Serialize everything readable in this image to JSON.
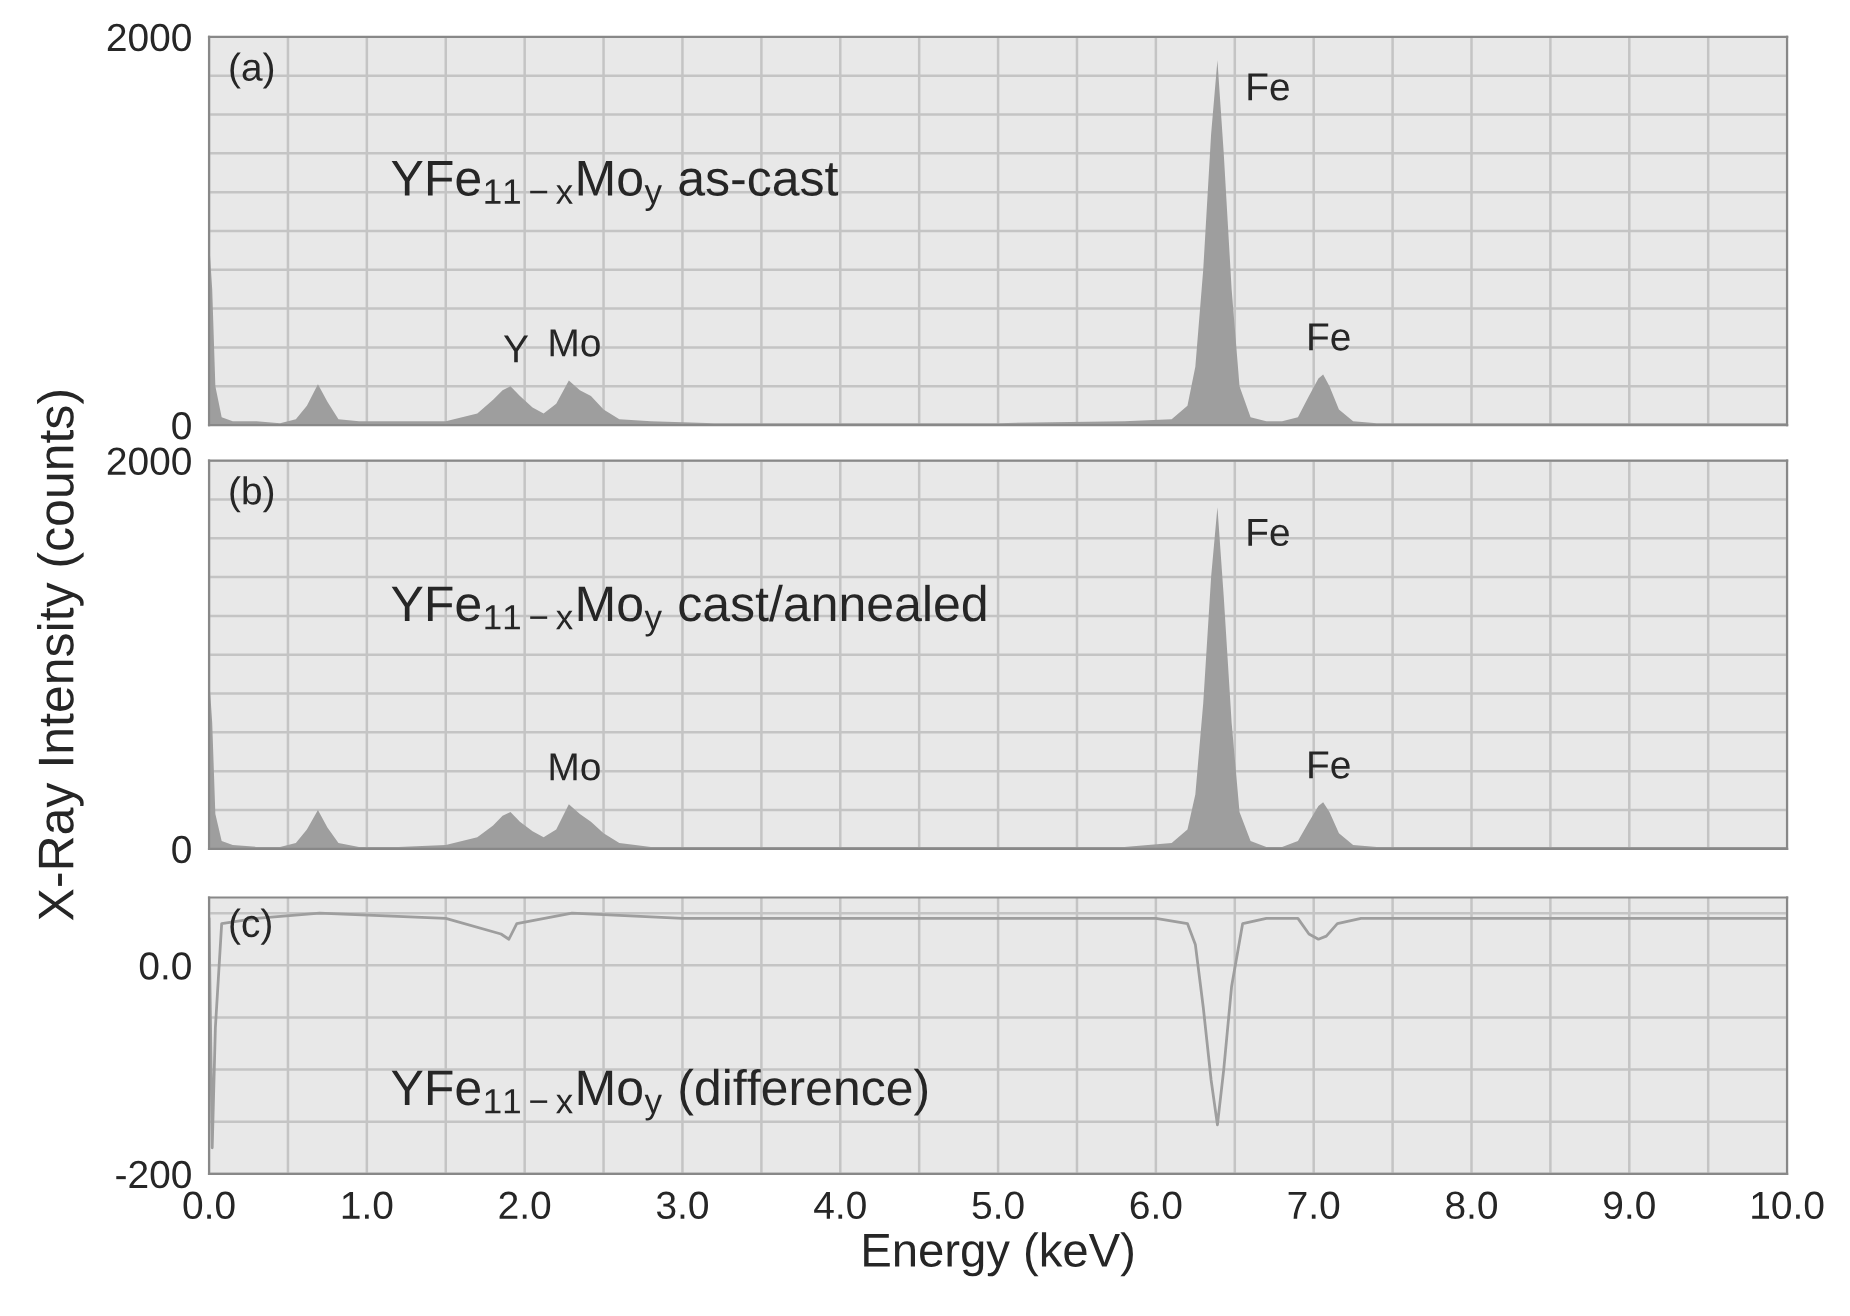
{
  "chart_data": [
    {
      "type": "area",
      "x": [
        0,
        0.02,
        0.04,
        0.08,
        0.15,
        0.3,
        0.45,
        0.55,
        0.62,
        0.69,
        0.75,
        0.82,
        0.95,
        1.2,
        1.5,
        1.7,
        1.8,
        1.86,
        1.91,
        1.97,
        2.05,
        2.12,
        2.2,
        2.28,
        2.35,
        2.42,
        2.5,
        2.6,
        2.8,
        3.2,
        4,
        5,
        5.8,
        6.1,
        6.2,
        6.25,
        6.3,
        6.35,
        6.39,
        6.43,
        6.48,
        6.53,
        6.6,
        6.7,
        6.8,
        6.9,
        6.97,
        7.03,
        7.06,
        7.1,
        7.16,
        7.25,
        7.4,
        8,
        9,
        10
      ],
      "series": [
        {
          "color": "#9e9e9e",
          "values": [
            950,
            700,
            200,
            40,
            20,
            20,
            10,
            30,
            100,
            210,
            120,
            30,
            20,
            20,
            20,
            60,
            130,
            180,
            200,
            150,
            90,
            60,
            110,
            230,
            180,
            150,
            80,
            30,
            20,
            10,
            10,
            10,
            20,
            30,
            100,
            300,
            800,
            1500,
            1880,
            1400,
            700,
            200,
            40,
            20,
            20,
            40,
            150,
            240,
            260,
            200,
            80,
            20,
            10,
            10,
            10,
            10
          ]
        }
      ],
      "xlim": [
        0,
        10
      ],
      "xticks": [
        {
          "value": 0,
          "label": null
        },
        {
          "value": 0.5,
          "label": null
        },
        {
          "value": 1,
          "label": null
        },
        {
          "value": 1.5,
          "label": null
        },
        {
          "value": 2,
          "label": null
        },
        {
          "value": 2.5,
          "label": null
        },
        {
          "value": 3,
          "label": null
        },
        {
          "value": 3.5,
          "label": null
        },
        {
          "value": 4,
          "label": null
        },
        {
          "value": 4.5,
          "label": null
        },
        {
          "value": 5,
          "label": null
        },
        {
          "value": 5.5,
          "label": null
        },
        {
          "value": 6,
          "label": null
        },
        {
          "value": 6.5,
          "label": null
        },
        {
          "value": 7,
          "label": null
        },
        {
          "value": 7.5,
          "label": null
        },
        {
          "value": 8,
          "label": null
        },
        {
          "value": 8.5,
          "label": null
        },
        {
          "value": 9,
          "label": null
        },
        {
          "value": 9.5,
          "label": null
        },
        {
          "value": 10,
          "label": null
        }
      ],
      "ylim": [
        0,
        2000
      ],
      "yticks": [
        0,
        {
          "value": 200,
          "label": null
        },
        {
          "value": 400,
          "label": null
        },
        {
          "value": 600,
          "label": null
        },
        {
          "value": 800,
          "label": null
        },
        {
          "value": 1000,
          "label": null
        },
        {
          "value": 1200,
          "label": null
        },
        {
          "value": 1400,
          "label": null
        },
        {
          "value": 1600,
          "label": null
        },
        {
          "value": 1800,
          "label": null
        },
        2000
      ],
      "tick_labels": "y",
      "grid": true,
      "annotations": [
        "(a)",
        "YFe$_{11−x}$Mo$_{y}$ as-cast",
        {
          "text": "Y",
          "x": 1.91,
          "y": 196
        },
        {
          "text": "Mo",
          "x": 2.28,
          "y": 227
        },
        {
          "text": "Fe",
          "x": 6.39,
          "y": 1876
        },
        {
          "text": "Fe",
          "x": 7.06,
          "y": 258
        }
      ]
    },
    {
      "type": "area",
      "x": [
        0,
        0.02,
        0.04,
        0.08,
        0.15,
        0.3,
        0.45,
        0.55,
        0.62,
        0.69,
        0.75,
        0.82,
        0.95,
        1.2,
        1.5,
        1.7,
        1.8,
        1.86,
        1.91,
        1.97,
        2.05,
        2.12,
        2.2,
        2.28,
        2.35,
        2.42,
        2.5,
        2.6,
        2.8,
        3.2,
        4,
        5,
        5.8,
        6.1,
        6.2,
        6.25,
        6.3,
        6.35,
        6.39,
        6.43,
        6.48,
        6.53,
        6.6,
        6.7,
        6.8,
        6.9,
        6.97,
        7.03,
        7.06,
        7.1,
        7.16,
        7.25,
        7.4,
        8,
        9,
        10
      ],
      "series": [
        {
          "color": "#9e9e9e",
          "values": [
            890,
            650,
            180,
            40,
            20,
            10,
            10,
            30,
            100,
            200,
            110,
            30,
            10,
            10,
            20,
            60,
            120,
            170,
            190,
            140,
            90,
            60,
            100,
            230,
            180,
            140,
            80,
            30,
            10,
            10,
            10,
            10,
            10,
            30,
            100,
            280,
            750,
            1400,
            1760,
            1300,
            650,
            190,
            40,
            10,
            10,
            40,
            140,
            220,
            240,
            190,
            80,
            20,
            10,
            10,
            10,
            10
          ]
        }
      ],
      "xlim": [
        0,
        10
      ],
      "xticks": [
        {
          "value": 0,
          "label": null
        },
        {
          "value": 0.5,
          "label": null
        },
        {
          "value": 1,
          "label": null
        },
        {
          "value": 1.5,
          "label": null
        },
        {
          "value": 2,
          "label": null
        },
        {
          "value": 2.5,
          "label": null
        },
        {
          "value": 3,
          "label": null
        },
        {
          "value": 3.5,
          "label": null
        },
        {
          "value": 4,
          "label": null
        },
        {
          "value": 4.5,
          "label": null
        },
        {
          "value": 5,
          "label": null
        },
        {
          "value": 5.5,
          "label": null
        },
        {
          "value": 6,
          "label": null
        },
        {
          "value": 6.5,
          "label": null
        },
        {
          "value": 7,
          "label": null
        },
        {
          "value": 7.5,
          "label": null
        },
        {
          "value": 8,
          "label": null
        },
        {
          "value": 8.5,
          "label": null
        },
        {
          "value": 9,
          "label": null
        },
        {
          "value": 9.5,
          "label": null
        },
        {
          "value": 10,
          "label": null
        }
      ],
      "ylim": [
        0,
        2000
      ],
      "yticks": [
        0,
        {
          "value": 200,
          "label": null
        },
        {
          "value": 400,
          "label": null
        },
        {
          "value": 600,
          "label": null
        },
        {
          "value": 800,
          "label": null
        },
        {
          "value": 1000,
          "label": null
        },
        {
          "value": 1200,
          "label": null
        },
        {
          "value": 1400,
          "label": null
        },
        {
          "value": 1600,
          "label": null
        },
        {
          "value": 1800,
          "label": null
        },
        2000
      ],
      "ylabel": "X-Ray Intensity (counts)",
      "tick_labels": "y",
      "grid": true,
      "annotations": [
        "(b)",
        "YFe$_{11−x}$Mo$_{y}$ cast/annealed",
        {
          "text": "Mo",
          "x": 2.28,
          "y": 226
        },
        {
          "text": "Fe",
          "x": 6.39,
          "y": 1764
        },
        {
          "text": "Fe",
          "x": 7.06,
          "y": 236
        }
      ]
    },
    {
      "type": "line",
      "x": [
        0,
        0.02,
        0.04,
        0.08,
        0.3,
        0.7,
        1.5,
        1.85,
        1.9,
        1.95,
        2.3,
        3,
        4,
        5,
        6.0,
        6.2,
        6.25,
        6.3,
        6.35,
        6.39,
        6.43,
        6.48,
        6.55,
        6.7,
        6.9,
        6.97,
        7.03,
        7.08,
        7.15,
        7.3,
        8,
        9,
        10
      ],
      "series": [
        {
          "color": "#9e9e9e",
          "values": [
            45,
            -175,
            -60,
            40,
            45,
            50,
            45,
            30,
            25,
            40,
            50,
            45,
            45,
            45,
            45,
            40,
            20,
            -40,
            -110,
            -153,
            -100,
            -20,
            40,
            45,
            45,
            30,
            25,
            28,
            40,
            45,
            45,
            45,
            45
          ]
        }
      ],
      "xlim": [
        0,
        10
      ],
      "xticks": [
        {
          "value": 0,
          "label": "0.0"
        },
        {
          "value": 0.5,
          "label": null
        },
        {
          "value": 1,
          "label": "1.0"
        },
        {
          "value": 1.5,
          "label": null
        },
        {
          "value": 2,
          "label": "2.0"
        },
        {
          "value": 2.5,
          "label": null
        },
        {
          "value": 3,
          "label": "3.0"
        },
        {
          "value": 3.5,
          "label": null
        },
        {
          "value": 4,
          "label": "4.0"
        },
        {
          "value": 4.5,
          "label": null
        },
        {
          "value": 5,
          "label": "5.0"
        },
        {
          "value": 5.5,
          "label": null
        },
        {
          "value": 6,
          "label": "6.0"
        },
        {
          "value": 6.5,
          "label": null
        },
        {
          "value": 7,
          "label": "7.0"
        },
        {
          "value": 7.5,
          "label": null
        },
        {
          "value": 8,
          "label": "8.0"
        },
        {
          "value": 8.5,
          "label": null
        },
        {
          "value": 9,
          "label": "9.0"
        },
        {
          "value": 9.5,
          "label": null
        },
        {
          "value": 10,
          "label": "10.0"
        }
      ],
      "ylim": [
        -200,
        65
      ],
      "yticks": [
        -200,
        {
          "value": -150,
          "label": null
        },
        {
          "value": -100,
          "label": null
        },
        {
          "value": -50,
          "label": null
        },
        {
          "value": 0,
          "label": "0.0"
        },
        {
          "value": 50,
          "label": null
        }
      ],
      "xlabel": "Energy (keV)",
      "grid": true,
      "annotations": [
        "(c)",
        "YFe$_{11−x}$Mo$_{y}$ (difference)"
      ]
    }
  ]
}
